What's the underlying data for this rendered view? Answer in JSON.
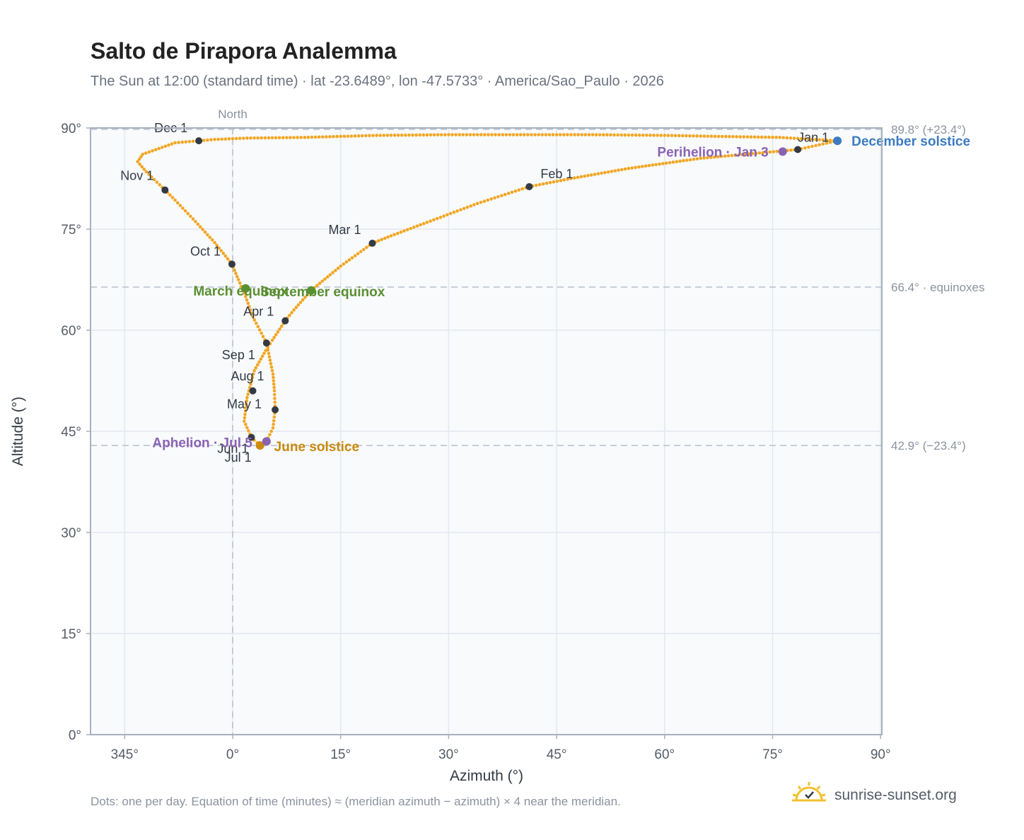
{
  "title": "Salto de Pirapora Analemma",
  "subtitle": "The Sun at 12:00 (standard time) · lat -23.6489°, lon -47.5733° · America/Sao_Paulo · 2026",
  "footnote": "Dots: one per day. Equation of time (minutes) ≈ (meridian azimuth − azimuth) × 4 near the meridian.",
  "brand": {
    "name": "sunrise-sunset.org",
    "logo_icon": "sun-check-icon"
  },
  "colors": {
    "path": "#f2a623",
    "month_marker": "#333a45",
    "equinox": "#5a8f32",
    "solstice_june": "#c98a0e",
    "solstice_dec": "#3c7bc0",
    "apsis": "#8a63b3",
    "plot_bg": "#f8fafc",
    "grid": "#e3e8ee",
    "reference_line": "#b8c0cc"
  },
  "chart_data": {
    "type": "scatter",
    "title": "Salto de Pirapora Analemma",
    "xlabel": "Azimuth (°)",
    "ylabel": "Altitude (°)",
    "xlim": [
      340,
      90
    ],
    "ylim": [
      0,
      90
    ],
    "x_axis_wraps_at": 360,
    "x_ticks": [
      345,
      0,
      15,
      30,
      45,
      60,
      75,
      90
    ],
    "x_tick_labels": [
      "345°",
      "0°",
      "15°",
      "30°",
      "45°",
      "60°",
      "75°",
      "90°"
    ],
    "y_ticks": [
      0,
      15,
      30,
      45,
      60,
      75,
      90
    ],
    "y_tick_labels": [
      "0°",
      "15°",
      "30°",
      "45°",
      "60°",
      "75°",
      "90°"
    ],
    "grid": true,
    "north_line": {
      "azimuth": 0,
      "label": "North"
    },
    "reference_lines": [
      {
        "altitude": 89.8,
        "label": "89.8° (+23.4°)"
      },
      {
        "altitude": 66.4,
        "label": "66.4° · equinoxes"
      },
      {
        "altitude": 42.9,
        "label": "42.9° (−23.4°)"
      }
    ],
    "month_markers": [
      {
        "label": "Jan 1",
        "az": 78.5,
        "alt": 86.8
      },
      {
        "label": "Feb 1",
        "az": 41.2,
        "alt": 81.3
      },
      {
        "label": "Mar 1",
        "az": 19.4,
        "alt": 72.9
      },
      {
        "label": "Apr 1",
        "az": 7.3,
        "alt": 61.4
      },
      {
        "label": "May 1",
        "az": 5.9,
        "alt": 48.2
      },
      {
        "label": "Jun 1",
        "az": 2.6,
        "alt": 44.1
      },
      {
        "label": "Jul 1",
        "az": 3.8,
        "alt": 42.9
      },
      {
        "label": "Aug 1",
        "az": 2.8,
        "alt": 51.0
      },
      {
        "label": "Sep 1",
        "az": 4.7,
        "alt": 58.1
      },
      {
        "label": "Oct 1",
        "az": 359.9,
        "alt": 69.8
      },
      {
        "label": "Nov 1",
        "az": 350.6,
        "alt": 80.8
      },
      {
        "label": "Dec 1",
        "az": 355.3,
        "alt": 88.1
      }
    ],
    "events": [
      {
        "label": "March equinox",
        "az": 1.8,
        "alt": 66.2
      },
      {
        "label": "September equinox",
        "az": 10.9,
        "alt": 65.9
      },
      {
        "label": "June solstice",
        "az": 3.8,
        "alt": 42.9
      },
      {
        "label": "December solstice",
        "az": 84.0,
        "alt": 88.1
      },
      {
        "label": "Perihelion · Jan 3",
        "az": 76.4,
        "alt": 86.5
      },
      {
        "label": "Aphelion · Jul 5",
        "az": 4.7,
        "alt": 43.5
      }
    ],
    "daily_path": [
      {
        "from": "Dec 21",
        "to": "Mar 1",
        "points": [
          [
            84.0,
            88.1
          ],
          [
            78.5,
            86.8
          ],
          [
            65.0,
            85.5
          ],
          [
            55.0,
            84.0
          ],
          [
            47.0,
            82.5
          ],
          [
            41.2,
            81.3
          ],
          [
            34.0,
            78.8
          ],
          [
            27.0,
            76.0
          ],
          [
            22.0,
            74.0
          ],
          [
            19.4,
            72.9
          ]
        ]
      },
      {
        "from": "Mar 1",
        "to": "Jun 21",
        "points": [
          [
            19.4,
            72.9
          ],
          [
            15.0,
            69.5
          ],
          [
            11.0,
            66.0
          ],
          [
            8.5,
            63.0
          ],
          [
            7.3,
            61.4
          ],
          [
            5.5,
            58.5
          ],
          [
            4.6,
            57.0
          ],
          [
            3.0,
            54.0
          ],
          [
            2.0,
            50.0
          ],
          [
            1.6,
            46.5
          ],
          [
            2.6,
            44.1
          ],
          [
            3.8,
            42.9
          ]
        ]
      },
      {
        "from": "Jun 21",
        "to": "Oct 1",
        "points": [
          [
            3.8,
            42.9
          ],
          [
            4.7,
            43.5
          ],
          [
            5.6,
            45.5
          ],
          [
            5.9,
            48.2
          ],
          [
            5.8,
            51.0
          ],
          [
            5.6,
            53.5
          ],
          [
            4.7,
            58.1
          ],
          [
            2.8,
            62.0
          ],
          [
            1.8,
            65.0
          ],
          [
            0.8,
            67.5
          ],
          [
            359.9,
            69.8
          ]
        ]
      },
      {
        "from": "Oct 1",
        "to": "Dec 21",
        "points": [
          [
            359.9,
            69.8
          ],
          [
            357.5,
            73.0
          ],
          [
            354.5,
            76.5
          ],
          [
            352.0,
            79.3
          ],
          [
            350.6,
            80.8
          ],
          [
            348.0,
            83.5
          ],
          [
            346.8,
            85.0
          ],
          [
            347.5,
            86.1
          ],
          [
            352.0,
            87.8
          ],
          [
            357.5,
            88.3
          ],
          [
            2.0,
            88.5
          ],
          [
            10.0,
            88.6
          ],
          [
            20.0,
            88.9
          ],
          [
            30.0,
            89.0
          ],
          [
            40.0,
            89.0
          ],
          [
            50.0,
            89.0
          ],
          [
            60.0,
            88.9
          ],
          [
            70.0,
            88.7
          ],
          [
            76.0,
            88.6
          ],
          [
            84.0,
            88.1
          ]
        ]
      }
    ]
  }
}
